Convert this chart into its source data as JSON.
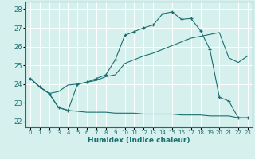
{
  "xlabel": "Humidex (Indice chaleur)",
  "background_color": "#d6f0ee",
  "grid_color": "#ffffff",
  "line_color": "#1a7070",
  "xlim": [
    -0.5,
    23.5
  ],
  "ylim": [
    21.7,
    28.4
  ],
  "yticks": [
    22,
    23,
    24,
    25,
    26,
    27,
    28
  ],
  "xticks": [
    0,
    1,
    2,
    3,
    4,
    5,
    6,
    7,
    8,
    9,
    10,
    11,
    12,
    13,
    14,
    15,
    16,
    17,
    18,
    19,
    20,
    21,
    22,
    23
  ],
  "line_main_x": [
    0,
    1,
    2,
    3,
    4,
    5,
    6,
    7,
    8,
    9,
    10,
    11,
    12,
    13,
    14,
    15,
    16,
    17,
    18,
    19,
    20,
    21,
    22,
    23
  ],
  "line_main_y": [
    24.3,
    23.85,
    23.5,
    22.75,
    22.6,
    24.0,
    24.1,
    24.3,
    24.5,
    25.3,
    26.6,
    26.8,
    27.0,
    27.15,
    27.75,
    27.85,
    27.45,
    27.5,
    26.85,
    25.85,
    23.3,
    23.1,
    22.2,
    22.2
  ],
  "line_mid_x": [
    0,
    1,
    2,
    3,
    4,
    5,
    6,
    7,
    8,
    9,
    10,
    11,
    12,
    13,
    14,
    15,
    16,
    17,
    18,
    19,
    20,
    21,
    22,
    23
  ],
  "line_mid_y": [
    24.3,
    23.85,
    23.5,
    23.6,
    23.95,
    24.0,
    24.1,
    24.2,
    24.4,
    24.5,
    25.1,
    25.3,
    25.5,
    25.65,
    25.85,
    26.05,
    26.25,
    26.45,
    26.55,
    26.65,
    26.75,
    25.4,
    25.15,
    25.5
  ],
  "line_low_x": [
    0,
    1,
    2,
    3,
    4,
    5,
    6,
    7,
    8,
    9,
    10,
    11,
    12,
    13,
    14,
    15,
    16,
    17,
    18,
    19,
    20,
    21,
    22,
    23
  ],
  "line_low_y": [
    24.3,
    23.85,
    23.5,
    22.75,
    22.6,
    22.55,
    22.5,
    22.5,
    22.5,
    22.45,
    22.45,
    22.45,
    22.4,
    22.4,
    22.4,
    22.4,
    22.35,
    22.35,
    22.35,
    22.3,
    22.3,
    22.3,
    22.2,
    22.2
  ]
}
